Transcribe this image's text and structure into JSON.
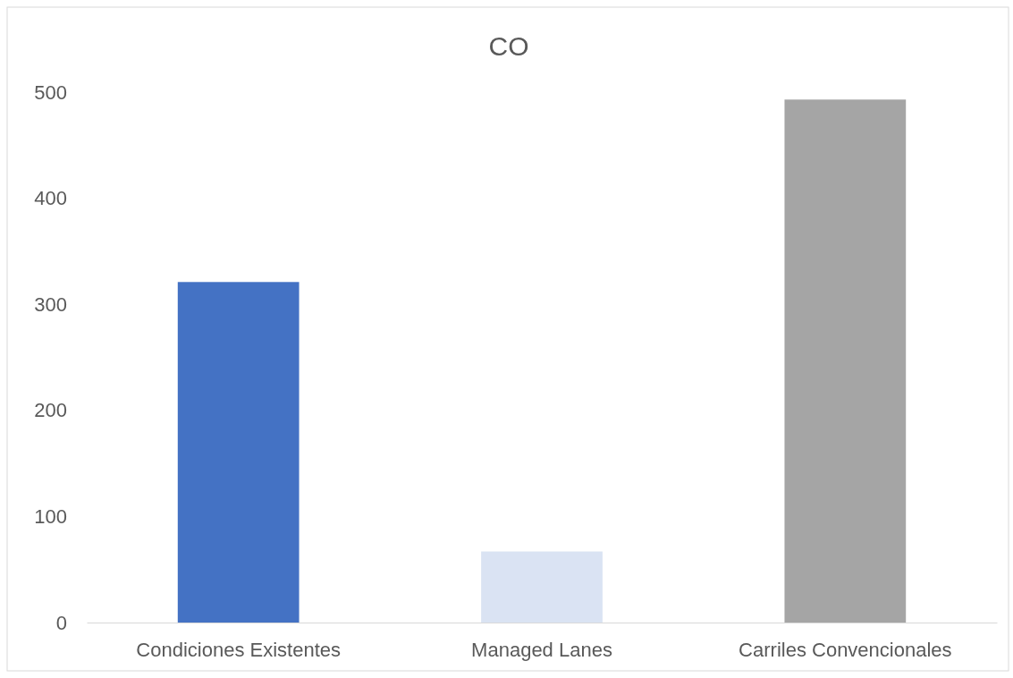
{
  "chart_data": {
    "type": "bar",
    "title": "CO",
    "categories": [
      "Condiciones Existentes",
      "Managed Lanes",
      "Carriles Convencionales"
    ],
    "values": [
      321,
      67,
      493
    ],
    "colors": [
      "#4472c4",
      "#dae3f3",
      "#a5a5a5"
    ],
    "ylim": [
      0,
      500
    ],
    "yticks": [
      0,
      100,
      200,
      300,
      400,
      500
    ],
    "grid": false
  }
}
